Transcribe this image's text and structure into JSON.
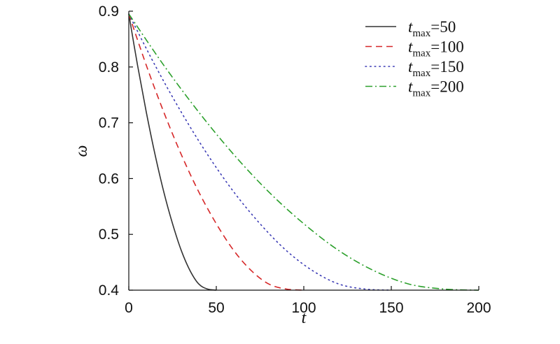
{
  "chart_data": {
    "type": "line",
    "title": "",
    "xlabel": "t",
    "ylabel": "ω",
    "xlim": [
      0,
      200
    ],
    "ylim": [
      0.4,
      0.9
    ],
    "x_ticks": [
      "0",
      "50",
      "100",
      "150",
      "200"
    ],
    "y_ticks": [
      "0.4",
      "0.5",
      "0.6",
      "0.7",
      "0.8",
      "0.9"
    ],
    "grid": false,
    "legend_position": "top-right",
    "series": [
      {
        "name": "tmax=50",
        "name_var": "t",
        "name_sub": "max",
        "name_value": "=50",
        "color": "#333333",
        "dash": "solid",
        "x": [
          0,
          5,
          10,
          15,
          20,
          25,
          30,
          35,
          40,
          45,
          50
        ],
        "y": [
          0.895,
          0.803,
          0.719,
          0.643,
          0.576,
          0.519,
          0.471,
          0.435,
          0.411,
          0.402,
          0.4
        ]
      },
      {
        "name": "tmax=100",
        "name_var": "t",
        "name_sub": "max",
        "name_value": "=100",
        "color": "#d62728",
        "dash": "dashed",
        "x": [
          0,
          10,
          20,
          30,
          40,
          50,
          60,
          70,
          80,
          90,
          100
        ],
        "y": [
          0.895,
          0.803,
          0.719,
          0.643,
          0.576,
          0.519,
          0.471,
          0.435,
          0.411,
          0.402,
          0.4
        ]
      },
      {
        "name": "tmax=150",
        "name_var": "t",
        "name_sub": "max",
        "name_value": "=150",
        "color": "#3b3bb5",
        "dash": "dotted",
        "x": [
          0,
          15,
          30,
          45,
          60,
          75,
          90,
          105,
          120,
          135,
          150
        ],
        "y": [
          0.895,
          0.803,
          0.719,
          0.643,
          0.576,
          0.519,
          0.471,
          0.435,
          0.411,
          0.402,
          0.4
        ]
      },
      {
        "name": "tmax=200",
        "name_var": "t",
        "name_sub": "max",
        "name_value": "=200",
        "color": "#2ca02c",
        "dash": "dashdot",
        "x": [
          0,
          20,
          40,
          60,
          80,
          100,
          120,
          140,
          160,
          180,
          200
        ],
        "y": [
          0.895,
          0.803,
          0.719,
          0.643,
          0.576,
          0.519,
          0.471,
          0.435,
          0.411,
          0.402,
          0.4
        ]
      }
    ]
  }
}
